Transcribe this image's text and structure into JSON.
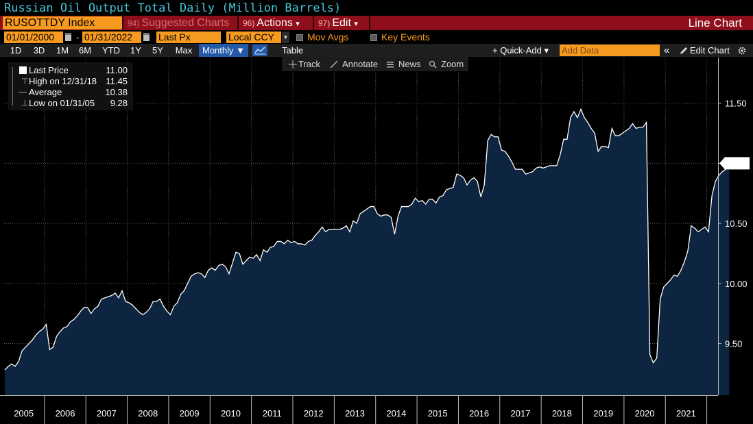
{
  "window": {
    "title": "Russian Oil Output Total Daily (Million Barrels)"
  },
  "menubar": {
    "ticker": "RUSOTTDY Index",
    "suggested": {
      "num": "94)",
      "label": "Suggested Charts"
    },
    "actions": {
      "num": "96)",
      "label": "Actions",
      "arrow": "▾"
    },
    "edit": {
      "num": "97)",
      "label": "Edit",
      "arrow": "▾"
    },
    "chart_type": "Line Chart"
  },
  "controls": {
    "start_date": "01/01/2000",
    "date_sep": "-",
    "end_date": "01/31/2022",
    "field": "Last Px",
    "currency": "Local CCY",
    "mov_avgs": "Mov Avgs",
    "key_events": "Key Events"
  },
  "toolbar": {
    "periods": [
      "1D",
      "3D",
      "1M",
      "6M",
      "YTD",
      "1Y",
      "5Y",
      "Max"
    ],
    "frequency": "Monthly ▼",
    "table": "Table",
    "quick_add": "+ Quick-Add ▾",
    "add_data_placeholder": "Add Data",
    "collapse": "«",
    "edit_chart": "Edit Chart",
    "settings_icon": "gear-icon"
  },
  "chart_tools": {
    "track": "Track",
    "annotate": "Annotate",
    "news": "News",
    "zoom": "Zoom"
  },
  "legend": {
    "rows": [
      {
        "label": "Last Price",
        "value": "11.00"
      },
      {
        "label": "High on 12/31/18",
        "value": "11.45"
      },
      {
        "label": "Average",
        "value": "10.38"
      },
      {
        "label": "Low on 01/31/05",
        "value": "9.28"
      }
    ]
  },
  "chart_data": {
    "type": "area",
    "title": "Russian Oil Output Total Daily (Million Barrels)",
    "x_start": "2005-01",
    "frequency": "monthly",
    "xlabel": "",
    "ylabel": "",
    "ylim": [
      9.07,
      11.88
    ],
    "yticks": [
      9.5,
      10.0,
      10.5,
      11.0,
      11.5
    ],
    "ytick_labels": [
      "9.50",
      "10.00",
      "10.50",
      "11.00",
      "11.50"
    ],
    "x_tick_labels": [
      "2005",
      "2006",
      "2007",
      "2008",
      "2009",
      "2010",
      "2011",
      "2012",
      "2013",
      "2014",
      "2015",
      "2016",
      "2017",
      "2018",
      "2019",
      "2020",
      "2021"
    ],
    "last_label": "11.00",
    "colors": {
      "fill": "#0d2540",
      "line": "#ffffff",
      "grid": "#5a5a5a"
    },
    "series": [
      {
        "values": [
          9.28,
          9.31,
          9.33,
          9.31,
          9.35,
          9.44,
          9.47,
          9.5,
          9.53,
          9.57,
          9.6,
          9.62,
          9.66,
          9.45,
          9.47,
          9.56,
          9.6,
          9.63,
          9.64,
          9.68,
          9.7,
          9.73,
          9.77,
          9.8,
          9.8,
          9.75,
          9.79,
          9.81,
          9.87,
          9.88,
          9.89,
          9.9,
          9.92,
          9.88,
          9.94,
          9.85,
          9.84,
          9.82,
          9.79,
          9.76,
          9.74,
          9.76,
          9.79,
          9.85,
          9.85,
          9.87,
          9.81,
          9.77,
          9.74,
          9.81,
          9.84,
          9.91,
          9.94,
          10.0,
          10.06,
          10.08,
          10.09,
          10.08,
          10.05,
          10.11,
          10.13,
          10.11,
          10.15,
          10.16,
          10.14,
          10.08,
          10.17,
          10.26,
          10.25,
          10.16,
          10.19,
          10.22,
          10.21,
          10.24,
          10.19,
          10.28,
          10.26,
          10.3,
          10.31,
          10.35,
          10.35,
          10.33,
          10.36,
          10.34,
          10.35,
          10.33,
          10.33,
          10.32,
          10.35,
          10.36,
          10.4,
          10.43,
          10.47,
          10.43,
          10.45,
          10.45,
          10.45,
          10.45,
          10.46,
          10.48,
          10.43,
          10.52,
          10.5,
          10.58,
          10.6,
          10.62,
          10.64,
          10.64,
          10.58,
          10.56,
          10.57,
          10.57,
          10.55,
          10.41,
          10.56,
          10.64,
          10.64,
          10.64,
          10.66,
          10.71,
          10.68,
          10.69,
          10.66,
          10.7,
          10.7,
          10.67,
          10.72,
          10.73,
          10.78,
          10.79,
          10.8,
          10.91,
          10.9,
          10.88,
          10.82,
          10.86,
          10.88,
          10.85,
          10.72,
          10.82,
          11.19,
          11.24,
          11.22,
          11.22,
          11.11,
          11.1,
          11.06,
          11.01,
          10.95,
          10.95,
          10.95,
          10.91,
          10.92,
          10.93,
          10.96,
          10.97,
          10.96,
          10.97,
          10.98,
          10.98,
          10.98,
          11.07,
          11.2,
          11.2,
          11.38,
          11.43,
          11.38,
          11.45,
          11.38,
          11.34,
          11.29,
          11.25,
          11.1,
          11.14,
          11.14,
          11.13,
          11.29,
          11.23,
          11.23,
          11.25,
          11.27,
          11.29,
          11.33,
          11.29,
          11.3,
          11.3,
          11.34,
          9.41,
          9.34,
          9.38,
          9.87,
          9.97,
          10.0,
          10.03,
          10.07,
          10.06,
          10.11,
          10.18,
          10.27,
          10.48,
          10.46,
          10.43,
          10.45,
          10.47,
          10.43,
          10.73,
          10.85,
          10.9,
          10.93,
          10.95,
          11.0
        ]
      }
    ]
  }
}
